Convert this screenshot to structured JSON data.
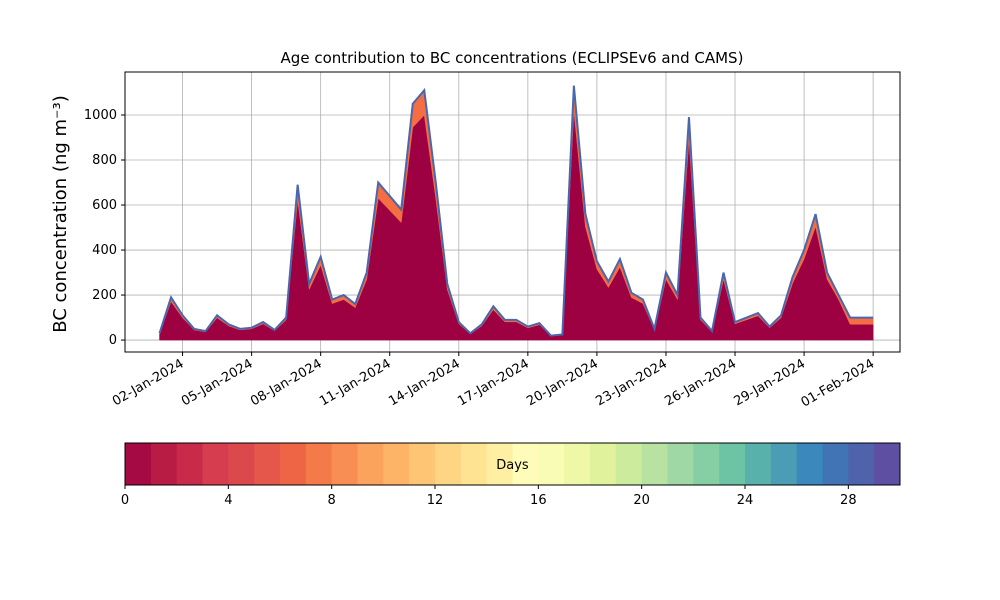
{
  "chart_data": {
    "type": "stacked_area",
    "title": "Age contribution to BC concentrations (ECLIPSEv6 and CAMS)",
    "y_label": "BC concentration (ng m⁻³)",
    "x": [
      "2024-01-01 00:00",
      "2024-01-01 12:00",
      "2024-01-02 00:00",
      "2024-01-02 12:00",
      "2024-01-03 00:00",
      "2024-01-03 12:00",
      "2024-01-04 00:00",
      "2024-01-04 12:00",
      "2024-01-05 00:00",
      "2024-01-05 12:00",
      "2024-01-06 00:00",
      "2024-01-06 12:00",
      "2024-01-07 00:00",
      "2024-01-07 12:00",
      "2024-01-08 00:00",
      "2024-01-08 12:00",
      "2024-01-09 00:00",
      "2024-01-09 12:00",
      "2024-01-10 00:00",
      "2024-01-10 12:00",
      "2024-01-11 00:00",
      "2024-01-11 12:00",
      "2024-01-12 00:00",
      "2024-01-12 12:00",
      "2024-01-13 00:00",
      "2024-01-13 12:00",
      "2024-01-14 00:00",
      "2024-01-14 12:00",
      "2024-01-15 00:00",
      "2024-01-15 12:00",
      "2024-01-16 00:00",
      "2024-01-16 12:00",
      "2024-01-17 00:00",
      "2024-01-17 12:00",
      "2024-01-18 00:00",
      "2024-01-18 12:00",
      "2024-01-19 00:00",
      "2024-01-19 12:00",
      "2024-01-20 00:00",
      "2024-01-20 12:00",
      "2024-01-21 00:00",
      "2024-01-21 12:00",
      "2024-01-22 00:00",
      "2024-01-22 12:00",
      "2024-01-23 00:00",
      "2024-01-23 12:00",
      "2024-01-24 00:00",
      "2024-01-24 12:00",
      "2024-01-25 00:00",
      "2024-01-25 12:00",
      "2024-01-26 00:00",
      "2024-01-26 12:00",
      "2024-01-27 00:00",
      "2024-01-27 12:00",
      "2024-01-28 00:00",
      "2024-01-28 12:00",
      "2024-01-29 00:00",
      "2024-01-29 12:00",
      "2024-01-30 00:00",
      "2024-01-30 12:00",
      "2024-01-31 00:00",
      "2024-01-31 12:00",
      "2024-02-01 00:00"
    ],
    "series": [
      {
        "color": "#9e0142",
        "values": [
          27,
          171,
          99,
          45,
          36,
          99,
          63,
          45,
          50,
          72,
          41,
          90,
          621,
          225,
          333,
          162,
          180,
          144,
          270,
          630,
          576,
          522,
          945,
          999,
          630,
          225,
          72,
          27,
          63,
          135,
          81,
          81,
          54,
          68,
          18,
          23,
          1017,
          504,
          315,
          234,
          324,
          189,
          162,
          45,
          270,
          180,
          891,
          90,
          36,
          270,
          72,
          90,
          108,
          54,
          99,
          252,
          360,
          504,
          270,
          180,
          70,
          70,
          70
        ]
      },
      {
        "color": "#f46d43",
        "values": [
          3,
          19,
          11,
          5,
          4,
          11,
          7,
          5,
          5,
          8,
          4,
          10,
          69,
          25,
          37,
          18,
          20,
          16,
          30,
          70,
          64,
          58,
          105,
          111,
          70,
          25,
          8,
          3,
          7,
          15,
          9,
          9,
          6,
          7,
          2,
          2,
          113,
          56,
          35,
          26,
          36,
          21,
          18,
          5,
          30,
          20,
          99,
          10,
          4,
          30,
          8,
          10,
          12,
          6,
          11,
          28,
          40,
          56,
          30,
          20,
          30,
          30,
          30
        ]
      }
    ],
    "outline_color": "#4a66ac",
    "xlim": [
      "2023-12-30 12:00",
      "2024-02-02 04:00"
    ],
    "xticks": [
      {
        "value": "2024-01-02 00:00",
        "label": "02-Jan-2024"
      },
      {
        "value": "2024-01-05 00:00",
        "label": "05-Jan-2024"
      },
      {
        "value": "2024-01-08 00:00",
        "label": "08-Jan-2024"
      },
      {
        "value": "2024-01-11 00:00",
        "label": "11-Jan-2024"
      },
      {
        "value": "2024-01-14 00:00",
        "label": "14-Jan-2024"
      },
      {
        "value": "2024-01-17 00:00",
        "label": "17-Jan-2024"
      },
      {
        "value": "2024-01-20 00:00",
        "label": "20-Jan-2024"
      },
      {
        "value": "2024-01-23 00:00",
        "label": "23-Jan-2024"
      },
      {
        "value": "2024-01-26 00:00",
        "label": "26-Jan-2024"
      },
      {
        "value": "2024-01-29 00:00",
        "label": "29-Jan-2024"
      },
      {
        "value": "2024-02-01 00:00",
        "label": "01-Feb-2024"
      }
    ],
    "ylim": [
      -53,
      1191
    ],
    "yticks": [
      0,
      200,
      400,
      600,
      800,
      1000
    ],
    "grid": true,
    "colorbar": {
      "label": "Days",
      "lim": [
        0,
        30
      ],
      "ticks": [
        0,
        4,
        8,
        12,
        16,
        20,
        24,
        28
      ],
      "colors": [
        "#a50a45",
        "#b81b44",
        "#c92a4a",
        "#d63d4e",
        "#dc494c",
        "#e4574a",
        "#ee6545",
        "#f47a4a",
        "#f88e53",
        "#fba35d",
        "#fdb466",
        "#fdc574",
        "#fed683",
        "#fee392",
        "#feefa3",
        "#fffbb8",
        "#f8fcb4",
        "#eff8a6",
        "#e0f29c",
        "#cdeb9d",
        "#b7e2a1",
        "#9fd8a4",
        "#86cfa5",
        "#6cc4a5",
        "#58b1aa",
        "#4a9db4",
        "#3a88bc",
        "#3f75b5",
        "#4e63ac",
        "#5e4fa2"
      ]
    }
  }
}
